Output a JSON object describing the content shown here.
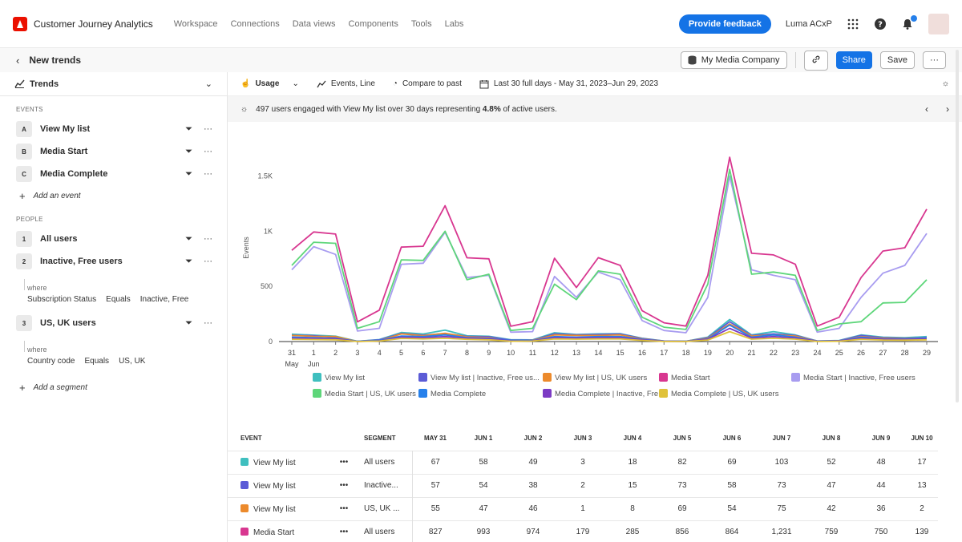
{
  "app": {
    "title": "Customer Journey Analytics",
    "nav": [
      "Workspace",
      "Connections",
      "Data views",
      "Components",
      "Tools",
      "Labs"
    ],
    "feedback_label": "Provide feedback",
    "org_name": "Luma ACxP"
  },
  "project": {
    "title": "New trends",
    "data_view": "My Media Company",
    "share_label": "Share",
    "save_label": "Save"
  },
  "panel": {
    "header": "Trends",
    "events_section": "EVENTS",
    "events": [
      {
        "badge": "A",
        "label": "View My list"
      },
      {
        "badge": "B",
        "label": "Media Start"
      },
      {
        "badge": "C",
        "label": "Media Complete"
      }
    ],
    "add_event": "Add an event",
    "people_section": "PEOPLE",
    "people": [
      {
        "badge": "1",
        "label": "All users"
      },
      {
        "badge": "2",
        "label": "Inactive, Free users",
        "where": "where",
        "cond": [
          "Subscription Status",
          "Equals",
          "Inactive, Free"
        ]
      },
      {
        "badge": "3",
        "label": "US, UK users",
        "where": "where",
        "cond": [
          "Country code",
          "Equals",
          "US, UK"
        ]
      }
    ],
    "add_segment": "Add a segment"
  },
  "toolbar": {
    "usage": "Usage",
    "viz": "Events, Line",
    "compare": "Compare to past",
    "range": "Last 30 full days - May 31, 2023–Jun 29, 2023"
  },
  "insight": {
    "text_before": "497 users engaged with View My list over 30 days representing ",
    "pct": "4.8%",
    "text_after": " of active users."
  },
  "chart_data": {
    "type": "line",
    "ylabel": "Events",
    "ylim": [
      0,
      1700
    ],
    "yticks": [
      0,
      500,
      1000,
      1500
    ],
    "ytick_labels": [
      "0",
      "500",
      "1K",
      "1.5K"
    ],
    "x": [
      "31",
      "1",
      "2",
      "3",
      "4",
      "5",
      "6",
      "7",
      "8",
      "9",
      "10",
      "11",
      "12",
      "13",
      "14",
      "15",
      "16",
      "17",
      "18",
      "19",
      "20",
      "21",
      "22",
      "23",
      "24",
      "25",
      "26",
      "27",
      "28",
      "29"
    ],
    "x_sublabels": {
      "0": "May",
      "1": "Jun"
    },
    "series": [
      {
        "name": "View My list",
        "color": "#3fbfbf",
        "values": [
          67,
          58,
          49,
          3,
          18,
          82,
          69,
          103,
          52,
          48,
          17,
          15,
          80,
          65,
          70,
          72,
          30,
          5,
          3,
          40,
          200,
          60,
          90,
          60,
          5,
          10,
          60,
          40,
          35,
          45
        ]
      },
      {
        "name": "View My list | Inactive, Free us...",
        "color": "#5b5bd6",
        "values": [
          57,
          54,
          38,
          2,
          15,
          73,
          58,
          73,
          47,
          44,
          13,
          12,
          70,
          60,
          65,
          68,
          28,
          4,
          2,
          35,
          180,
          55,
          70,
          55,
          4,
          8,
          55,
          35,
          30,
          35
        ]
      },
      {
        "name": "View My list | US, UK users",
        "color": "#ec8a2c",
        "values": [
          55,
          47,
          46,
          1,
          8,
          69,
          54,
          75,
          42,
          36,
          2,
          10,
          60,
          55,
          55,
          60,
          25,
          3,
          2,
          30,
          160,
          50,
          60,
          50,
          3,
          6,
          45,
          30,
          25,
          30
        ]
      },
      {
        "name": "Media Start",
        "color": "#d83790",
        "values": [
          827,
          993,
          974,
          179,
          285,
          856,
          864,
          1231,
          759,
          750,
          139,
          180,
          755,
          490,
          760,
          690,
          280,
          170,
          140,
          600,
          1670,
          800,
          785,
          700,
          140,
          220,
          580,
          820,
          850,
          1200
        ]
      },
      {
        "name": "Media Start | Inactive, Free users",
        "color": "#a89cf0",
        "values": [
          650,
          860,
          790,
          95,
          120,
          700,
          710,
          990,
          580,
          600,
          85,
          90,
          590,
          400,
          630,
          560,
          190,
          100,
          80,
          400,
          1500,
          650,
          600,
          560,
          85,
          120,
          400,
          620,
          690,
          980
        ]
      },
      {
        "name": "Media Start | US, UK users",
        "color": "#5ed67a",
        "values": [
          690,
          900,
          890,
          120,
          180,
          740,
          735,
          1000,
          560,
          610,
          100,
          120,
          520,
          380,
          640,
          610,
          220,
          130,
          110,
          520,
          1560,
          610,
          630,
          600,
          100,
          160,
          180,
          350,
          355,
          560
        ]
      },
      {
        "name": "Media Complete",
        "color": "#2680eb",
        "values": [
          40,
          35,
          30,
          2,
          10,
          50,
          45,
          60,
          35,
          30,
          8,
          8,
          45,
          40,
          45,
          45,
          20,
          3,
          2,
          25,
          150,
          40,
          60,
          40,
          3,
          5,
          40,
          25,
          22,
          30
        ]
      },
      {
        "name": "Media Complete | Inactive, Fre...",
        "color": "#7c3bc4",
        "values": [
          30,
          28,
          25,
          1,
          6,
          40,
          35,
          45,
          30,
          25,
          5,
          6,
          35,
          32,
          35,
          35,
          15,
          2,
          1,
          20,
          120,
          32,
          45,
          32,
          2,
          4,
          30,
          20,
          18,
          24
        ]
      },
      {
        "name": "Media Complete | US, UK users",
        "color": "#e0c23a",
        "values": [
          20,
          18,
          16,
          1,
          4,
          28,
          24,
          30,
          20,
          16,
          3,
          4,
          24,
          22,
          24,
          24,
          10,
          1,
          1,
          14,
          90,
          22,
          30,
          22,
          1,
          3,
          20,
          14,
          12,
          16
        ]
      }
    ]
  },
  "table": {
    "headers": [
      "EVENT",
      "",
      "SEGMENT",
      "MAY 31",
      "JUN 1",
      "JUN 2",
      "JUN 3",
      "JUN 4",
      "JUN 5",
      "JUN 6",
      "JUN 7",
      "JUN 8",
      "JUN 9",
      "JUN 10"
    ],
    "rows": [
      {
        "color": "#3fbfbf",
        "event": "View My list",
        "segment": "All users",
        "values": [
          "67",
          "58",
          "49",
          "3",
          "18",
          "82",
          "69",
          "103",
          "52",
          "48",
          "17"
        ]
      },
      {
        "color": "#5b5bd6",
        "event": "View My list",
        "segment": "Inactive...",
        "values": [
          "57",
          "54",
          "38",
          "2",
          "15",
          "73",
          "58",
          "73",
          "47",
          "44",
          "13"
        ]
      },
      {
        "color": "#ec8a2c",
        "event": "View My list",
        "segment": "US, UK ...",
        "values": [
          "55",
          "47",
          "46",
          "1",
          "8",
          "69",
          "54",
          "75",
          "42",
          "36",
          "2"
        ]
      },
      {
        "color": "#d83790",
        "event": "Media Start",
        "segment": "All users",
        "values": [
          "827",
          "993",
          "974",
          "179",
          "285",
          "856",
          "864",
          "1,231",
          "759",
          "750",
          "139"
        ]
      }
    ]
  }
}
